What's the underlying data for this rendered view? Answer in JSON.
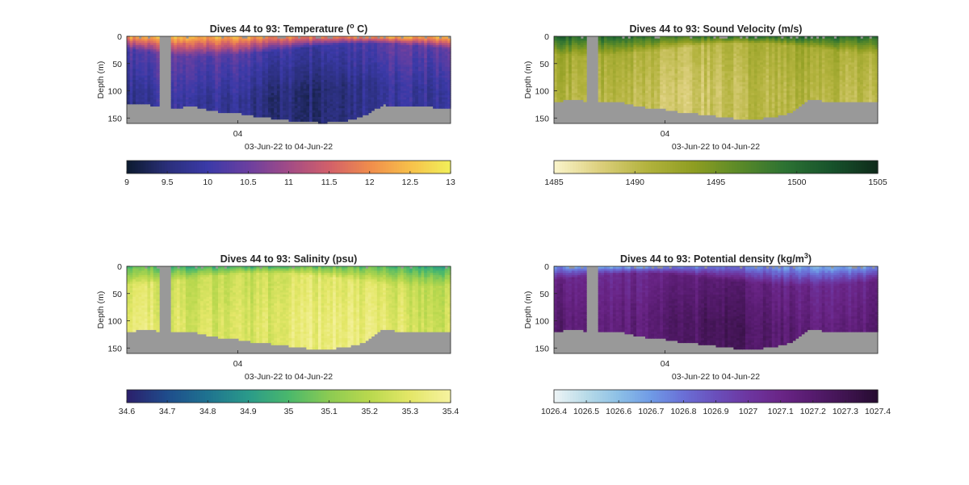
{
  "chart_data": [
    {
      "type": "heatmap",
      "title_main": "Dives 44 to 93: Temperature (",
      "title_sup": "o",
      "title_end": " C)",
      "ylabel": "Depth (m)",
      "xlabel": "03-Jun-22 to 04-Jun-22",
      "x_tick_labels": [
        "04"
      ],
      "y_ticks": [
        0,
        50,
        100,
        150
      ],
      "ylim": [
        0,
        160
      ],
      "colorbar": {
        "range": [
          9,
          13
        ],
        "ticks": [
          "9",
          "9.5",
          "10",
          "10.5",
          "11",
          "11.5",
          "12",
          "12.5",
          "13"
        ],
        "colors": [
          "#0c1a2e",
          "#2a2f7a",
          "#3b3aa8",
          "#6b3fa0",
          "#a24b86",
          "#d2606a",
          "#f08c4c",
          "#f7c04a",
          "#f1f05a"
        ]
      },
      "profile": {
        "surface": 12.3,
        "mid": 10.2,
        "deep": 9.7
      },
      "gap_frac": [
        0.1,
        0.135
      ],
      "bottom_depths": [
        125,
        126,
        125,
        127,
        128,
        132,
        130,
        128,
        133,
        135,
        140,
        138,
        142,
        145,
        148,
        150,
        152,
        154,
        156,
        157,
        158,
        158,
        156,
        155,
        150,
        145,
        135,
        125,
        128,
        130,
        126,
        128,
        130,
        130,
        130
      ]
    },
    {
      "type": "heatmap",
      "title_main": "Dives 44 to 93: Sound Velocity (m/s)",
      "title_sup": "",
      "title_end": "",
      "ylabel": "Depth (m)",
      "xlabel": "03-Jun-22 to 04-Jun-22",
      "x_tick_labels": [
        "04"
      ],
      "y_ticks": [
        0,
        50,
        100,
        150
      ],
      "ylim": [
        0,
        160
      ],
      "colorbar": {
        "range": [
          1485,
          1505
        ],
        "ticks": [
          "1485",
          "1490",
          "1495",
          "1500",
          "1505"
        ],
        "colors": [
          "#fbf5cc",
          "#dccf7c",
          "#b3b33e",
          "#8f9e22",
          "#5b8a28",
          "#2c7233",
          "#17532c",
          "#0f2a1b"
        ]
      },
      "profile": {
        "surface": 1499.5,
        "mid": 1491.0,
        "deep": 1489.8
      },
      "gap_frac": [
        0.1,
        0.135
      ],
      "bottom_depths": [
        118,
        118,
        117,
        118,
        119,
        122,
        121,
        118,
        125,
        128,
        132,
        130,
        135,
        138,
        140,
        142,
        145,
        146,
        148,
        150,
        150,
        151,
        150,
        148,
        144,
        138,
        125,
        115,
        118,
        122,
        118,
        120,
        120,
        120,
        120
      ]
    },
    {
      "type": "heatmap",
      "title_main": "Dives 44 to 93: Salinity (psu)",
      "title_sup": "",
      "title_end": "",
      "ylabel": "Depth (m)",
      "xlabel": "03-Jun-22 to 04-Jun-22",
      "x_tick_labels": [
        "04"
      ],
      "y_ticks": [
        0,
        50,
        100,
        150
      ],
      "ylim": [
        0,
        160
      ],
      "colorbar": {
        "range": [
          34.6,
          35.4
        ],
        "ticks": [
          "34.6",
          "34.7",
          "34.8",
          "34.9",
          "35",
          "35.1",
          "35.2",
          "35.3",
          "35.4"
        ],
        "colors": [
          "#2b1f6b",
          "#1f4d8c",
          "#1f7390",
          "#2a9a8a",
          "#4ab86c",
          "#8ccb52",
          "#b9d84e",
          "#e4e768",
          "#f6f2a0"
        ]
      },
      "profile": {
        "surface": 35.0,
        "mid": 35.26,
        "deep": 35.3
      },
      "gap_frac": [
        0.1,
        0.135
      ],
      "bottom_depths": [
        118,
        118,
        117,
        118,
        119,
        122,
        121,
        118,
        125,
        128,
        132,
        130,
        135,
        138,
        140,
        142,
        145,
        146,
        148,
        150,
        150,
        151,
        150,
        148,
        144,
        138,
        125,
        115,
        118,
        122,
        118,
        120,
        120,
        120,
        120
      ]
    },
    {
      "type": "heatmap",
      "title_main": "Dives 44 to 93: Potential density (kg/m",
      "title_sup": "3",
      "title_end": ")",
      "ylabel": "Depth (m)",
      "xlabel": "03-Jun-22 to 04-Jun-22",
      "x_tick_labels": [
        "04"
      ],
      "y_ticks": [
        0,
        50,
        100,
        150
      ],
      "ylim": [
        0,
        160
      ],
      "colorbar": {
        "range": [
          1026.4,
          1027.4
        ],
        "ticks": [
          "1026.4",
          "1026.5",
          "1026.6",
          "1026.7",
          "1026.8",
          "1026.9",
          "1027",
          "1027.1",
          "1027.2",
          "1027.3",
          "1027.4"
        ],
        "colors": [
          "#eef4f6",
          "#b8dbe8",
          "#8cc0e6",
          "#6f9ae6",
          "#6a6fd6",
          "#6a4fbb",
          "#6d36a0",
          "#6a2587",
          "#561b6e",
          "#3f1450",
          "#260b30"
        ]
      },
      "profile": {
        "surface": 1026.7,
        "mid": 1027.12,
        "deep": 1027.2
      },
      "gap_frac": [
        0.1,
        0.135
      ],
      "bottom_depths": [
        118,
        118,
        117,
        118,
        119,
        122,
        121,
        118,
        125,
        128,
        132,
        130,
        135,
        138,
        140,
        142,
        145,
        146,
        148,
        150,
        150,
        151,
        150,
        148,
        144,
        138,
        125,
        115,
        118,
        122,
        118,
        120,
        120,
        120,
        120
      ]
    }
  ],
  "colors": {
    "no_data": "#999999",
    "axis": "#262626"
  }
}
